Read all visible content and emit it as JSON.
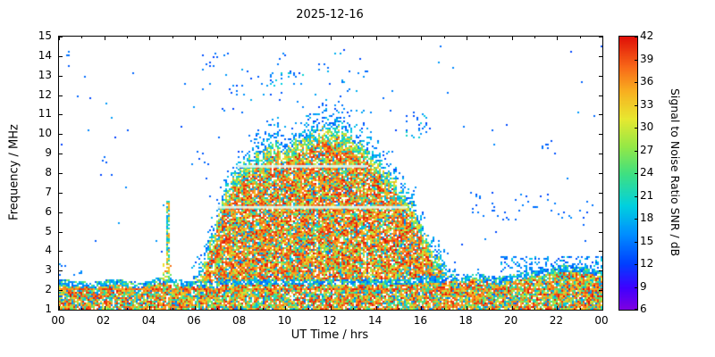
{
  "title": "2025-12-16",
  "chart_data": {
    "type": "heatmap",
    "title": "2025-12-16",
    "xlabel": "UT Time / hrs",
    "ylabel": "Frequency / MHz",
    "xlim": [
      0,
      24
    ],
    "ylim": [
      1,
      15
    ],
    "x_tick_values": [
      0,
      2,
      4,
      6,
      8,
      10,
      12,
      14,
      16,
      18,
      20,
      22,
      24
    ],
    "x_tick_labels": [
      "00",
      "02",
      "04",
      "06",
      "08",
      "10",
      "12",
      "14",
      "16",
      "18",
      "20",
      "22",
      "00"
    ],
    "x_minor_tick_values": [
      1,
      3,
      5,
      7,
      9,
      11,
      13,
      15,
      17,
      19,
      21,
      23
    ],
    "y_tick_values": [
      1,
      2,
      3,
      4,
      5,
      6,
      7,
      8,
      9,
      10,
      11,
      12,
      13,
      14,
      15
    ],
    "grid": false,
    "colorbar": {
      "label": "Signal to Noise Ratio SNR / dB",
      "min": 6,
      "max": 42,
      "ticks": [
        6,
        9,
        12,
        15,
        18,
        21,
        24,
        27,
        30,
        33,
        36,
        39,
        42
      ],
      "color_stops": [
        "#8000e0",
        "#4000ff",
        "#0040ff",
        "#0090ff",
        "#00d0e0",
        "#40e080",
        "#96e846",
        "#e8e830",
        "#f8b020",
        "#f86818",
        "#e01008"
      ]
    },
    "envelope": {
      "description": "Diurnal ionospheric SNR envelope: dense high-SNR dome 06:30-17:30 UT peaking ~10.7 MHz near 12 UT; persistent 1-3 MHz band all 24 h",
      "t_step_hrs": 0.5,
      "dome_top_mhz": [
        0,
        0,
        0,
        0,
        0,
        0,
        0,
        0,
        0,
        0,
        0,
        0,
        2.8,
        4.0,
        6.0,
        7.8,
        8.6,
        9.2,
        9.6,
        9.9,
        9.4,
        10.1,
        10.3,
        10.6,
        10.7,
        10.5,
        10.1,
        9.7,
        9.1,
        8.4,
        7.7,
        7.0,
        5.6,
        4.4,
        3.5,
        3.0,
        0,
        0,
        0,
        0,
        0,
        0,
        0,
        0,
        0,
        0,
        0,
        0,
        0
      ],
      "base_top_mhz": [
        2.6,
        2.5,
        2.5,
        2.4,
        2.5,
        2.6,
        2.5,
        2.4,
        2.5,
        2.7,
        2.6,
        2.5,
        2.5,
        2.5,
        2.5,
        2.6,
        2.6,
        2.6,
        2.6,
        2.6,
        2.6,
        2.6,
        2.6,
        2.6,
        2.6,
        2.6,
        2.6,
        2.6,
        2.6,
        2.6,
        2.6,
        2.6,
        2.7,
        2.7,
        2.7,
        2.8,
        2.8,
        2.9,
        2.7,
        2.7,
        2.8,
        2.9,
        3.0,
        3.1,
        3.2,
        3.3,
        3.2,
        3.1,
        3.0
      ]
    },
    "features": {
      "streaks": [
        {
          "f": 6.25,
          "t": [
            7.0,
            15.35
          ]
        },
        {
          "f": 8.35,
          "t": [
            7.85,
            13.6
          ]
        }
      ],
      "spike": {
        "t": 4.8,
        "half_width_hrs": 0.08,
        "f_top": 6.6
      },
      "clusters": [
        {
          "t": [
            7.2,
            13.8
          ],
          "f": [
            11.0,
            14.3
          ],
          "density": 0.02,
          "snr": [
            12,
            18
          ]
        },
        {
          "t": [
            9.3,
            10.8
          ],
          "f": [
            12.4,
            13.2
          ],
          "density": 0.12,
          "snr": [
            12,
            21
          ]
        },
        {
          "t": [
            12.4,
            13.2
          ],
          "f": [
            12.2,
            12.9
          ],
          "density": 0.08,
          "snr": [
            12,
            18
          ]
        },
        {
          "t": [
            15.3,
            16.4
          ],
          "f": [
            9.8,
            11.2
          ],
          "density": 0.1,
          "snr": [
            12,
            21
          ]
        },
        {
          "t": [
            18.0,
            23.8
          ],
          "f": [
            5.6,
            7.0
          ],
          "density": 0.04,
          "snr": [
            12,
            16
          ]
        },
        {
          "t": [
            19.5,
            24.0
          ],
          "f": [
            2.9,
            3.7
          ],
          "density": 0.25,
          "snr": [
            12,
            20
          ]
        },
        {
          "t": [
            5.8,
            6.6
          ],
          "f": [
            8.4,
            9.3
          ],
          "density": 0.08,
          "snr": [
            12,
            16
          ]
        },
        {
          "t": [
            1.9,
            2.2
          ],
          "f": [
            8.5,
            8.9
          ],
          "density": 0.3,
          "snr": [
            13,
            15
          ]
        },
        {
          "t": [
            0.2,
            0.5
          ],
          "f": [
            14.0,
            14.4
          ],
          "density": 0.3,
          "snr": [
            13,
            15
          ]
        },
        {
          "t": [
            6.3,
            7.6
          ],
          "f": [
            13.1,
            14.3
          ],
          "density": 0.05,
          "snr": [
            12,
            16
          ]
        },
        {
          "t": [
            21.3,
            21.6
          ],
          "f": [
            9.2,
            9.5
          ],
          "density": 0.3,
          "snr": [
            13,
            15
          ]
        },
        {
          "t": [
            16.8,
            17.4
          ],
          "f": [
            11.5,
            12.2
          ],
          "density": 0.05,
          "snr": [
            12,
            15
          ]
        },
        {
          "t": [
            0.0,
            1.2
          ],
          "f": [
            2.7,
            3.4
          ],
          "density": 0.08,
          "snr": [
            13,
            18
          ]
        },
        {
          "t": [
            4.6,
            5.0
          ],
          "f": [
            2.5,
            3.4
          ],
          "density": 0.45,
          "snr": [
            24,
            38
          ]
        }
      ]
    }
  }
}
